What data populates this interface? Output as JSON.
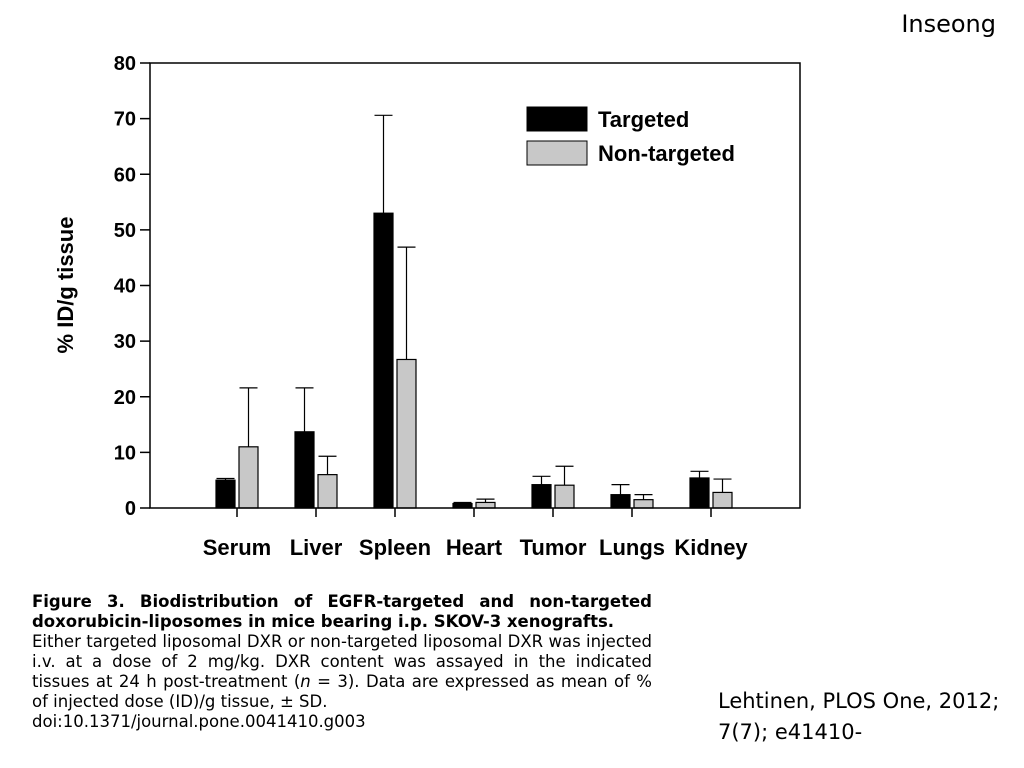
{
  "slide": {
    "author": "Inseong",
    "citation_line1": "Lehtinen, PLOS One, 2012;",
    "citation_line2": "7(7); e41410-"
  },
  "caption": {
    "title": "Figure 3. Biodistribution of EGFR-targeted and non-targeted doxorubicin-liposomes in mice bearing i.p. SKOV-3 xenografts.",
    "body_start": "Either targeted liposomal DXR or non-targeted liposomal DXR was injected i.v. at a dose of 2 mg/kg. DXR content was assayed in the indicated tissues at 24 h post-treatment (",
    "body_n": "n",
    "body_rest": " = 3). Data are expressed as mean of % of injected dose (ID)/g tissue, ± SD.",
    "doi": "doi:10.1371/journal.pone.0041410.g003"
  },
  "chart_data": {
    "type": "bar",
    "title": "",
    "xlabel": "",
    "ylabel": "% ID/g tissue",
    "categories": [
      "Serum",
      "Liver",
      "Spleen",
      "Heart",
      "Tumor",
      "Lungs",
      "Kidney"
    ],
    "series": [
      {
        "name": "Targeted",
        "color": "#000000",
        "values": [
          5,
          13.7,
          53,
          0.8,
          4.2,
          2.4,
          5.4
        ],
        "sd": [
          0.3,
          7.9,
          17.6,
          0.2,
          1.5,
          1.8,
          1.2
        ]
      },
      {
        "name": "Non-targeted",
        "color": "#c8c8c8",
        "values": [
          11,
          6,
          26.7,
          1,
          4.1,
          1.5,
          2.8
        ],
        "sd": [
          10.6,
          3.3,
          20.2,
          0.6,
          3.4,
          0.9,
          2.4
        ]
      }
    ],
    "ylim": [
      0,
      80
    ],
    "yticks": [
      0,
      10,
      20,
      30,
      40,
      50,
      60,
      70,
      80
    ],
    "grid": false,
    "legend": "top-right"
  }
}
